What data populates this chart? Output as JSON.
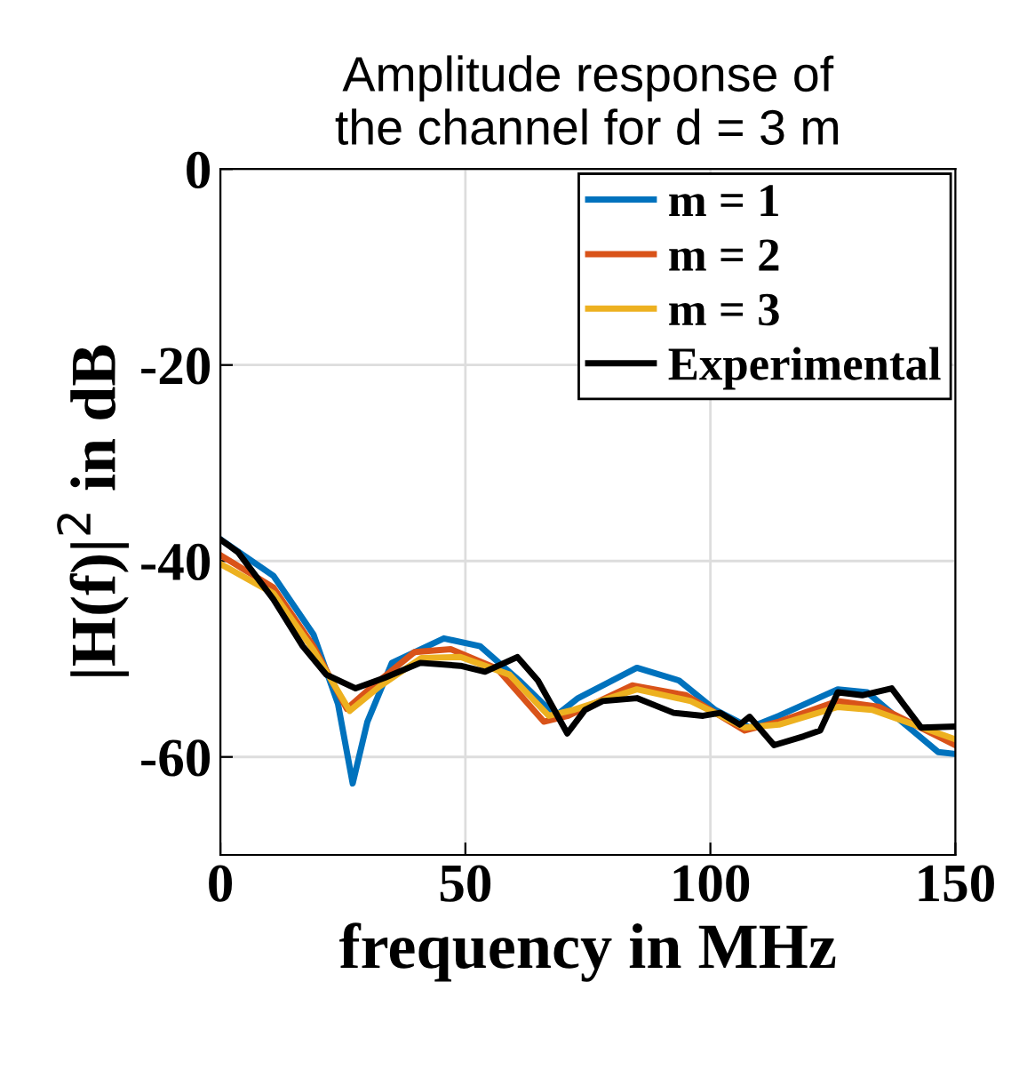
{
  "chart_data": {
    "type": "line",
    "title": "Amplitude response of\nthe channel for d = 3 m",
    "xlabel": "frequency in MHz",
    "ylabel": "|H(f)|$^{2}$ in dB",
    "xlim": [
      0,
      150
    ],
    "ylim": [
      -70,
      0
    ],
    "xticks": [
      0,
      50,
      100,
      150
    ],
    "yticks": [
      0,
      -20,
      -40,
      -60
    ],
    "grid": true,
    "legend": "top right",
    "line_style": "solid",
    "marker": "none",
    "series": [
      {
        "name": "m = 1",
        "color": "#0072bd",
        "x": [
          0,
          10.8,
          19,
          24,
          27,
          30,
          35,
          45.6,
          53,
          61,
          68.4,
          73,
          85,
          93.6,
          101,
          108,
          114,
          126,
          132,
          140.5,
          146.5,
          150
        ],
        "values": [
          -37.8,
          -41.5,
          -47.5,
          -54.6,
          -62.7,
          -56.4,
          -50.4,
          -47.9,
          -48.7,
          -52.2,
          -55.8,
          -54,
          -50.9,
          -52.2,
          -55.2,
          -57,
          -55.8,
          -53.1,
          -53.4,
          -57,
          -59.5,
          -59.7
        ]
      },
      {
        "name": "m = 2",
        "color": "#d95319",
        "x": [
          0,
          10.8,
          19,
          25.8,
          31,
          39.6,
          47,
          56.5,
          66,
          71,
          84,
          95,
          107,
          114,
          126,
          134.5,
          150
        ],
        "values": [
          -39.4,
          -42.7,
          -48.7,
          -55.1,
          -52.8,
          -49.3,
          -49,
          -51,
          -56.4,
          -55.8,
          -52.7,
          -53.7,
          -57.3,
          -56.4,
          -54.3,
          -54.9,
          -58.8
        ]
      },
      {
        "name": "m = 3",
        "color": "#edb120",
        "x": [
          0,
          10.8,
          19,
          26.4,
          32.5,
          41,
          49,
          59,
          67,
          72,
          85,
          96,
          107,
          114,
          126,
          133,
          150
        ],
        "values": [
          -40.3,
          -43.3,
          -49.1,
          -55.3,
          -52.8,
          -49.9,
          -49.8,
          -51.6,
          -55.8,
          -55.2,
          -53.1,
          -54.3,
          -57,
          -56.7,
          -54.9,
          -55.2,
          -58.2
        ]
      },
      {
        "name": "Experimental",
        "color": "#000000",
        "x": [
          0,
          3.6,
          10.8,
          16.8,
          21.6,
          27.6,
          33.6,
          40.8,
          49,
          54,
          60.6,
          64.8,
          70.8,
          74.4,
          78,
          85,
          92.5,
          98.5,
          102,
          106,
          108,
          113,
          119,
          122.4,
          126,
          131,
          137,
          143,
          150
        ],
        "values": [
          -37.8,
          -39.1,
          -43.9,
          -48.7,
          -51.6,
          -53,
          -51.9,
          -50.4,
          -50.7,
          -51.3,
          -49.8,
          -52.2,
          -57.6,
          -55.2,
          -54.3,
          -54,
          -55.5,
          -55.8,
          -55.5,
          -56.7,
          -55.9,
          -58.8,
          -57.9,
          -57.3,
          -53.4,
          -53.7,
          -53,
          -57,
          -56.9
        ]
      }
    ]
  }
}
